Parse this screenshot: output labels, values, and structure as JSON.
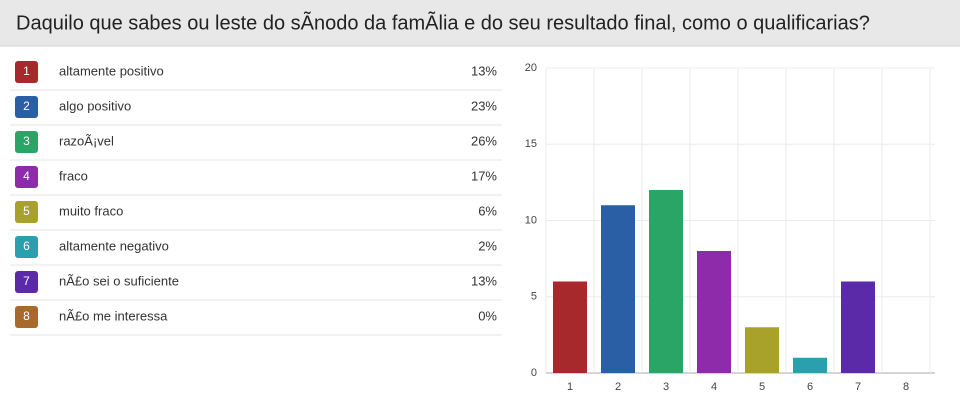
{
  "chart_data": {
    "type": "bar",
    "title": "Daquilo que sabes ou leste do sÃnodo da famÃlia e do seu resultado final, como o qualificarias?",
    "categories": [
      "1",
      "2",
      "3",
      "4",
      "5",
      "6",
      "7",
      "8"
    ],
    "values": [
      6,
      11,
      12,
      8,
      3,
      1,
      6,
      0
    ],
    "colors": [
      "#a8292b",
      "#2a5fa6",
      "#2aa566",
      "#8e2bab",
      "#a8a22a",
      "#2a9fae",
      "#5a2aa8",
      "#a86a2a"
    ],
    "ylim": [
      0,
      20
    ],
    "yticks": [
      0,
      5,
      10,
      15,
      20
    ],
    "grid": true,
    "table": {
      "rows": [
        [
          "altamente positivo",
          "13%"
        ],
        [
          "algo positivo",
          "23%"
        ],
        [
          "razoÃ¡vel",
          "26%"
        ],
        [
          "fraco",
          "17%"
        ],
        [
          "muito fraco",
          "6%"
        ],
        [
          "altamente negativo",
          "2%"
        ],
        [
          "nÃ£o sei o suficiente",
          "13%"
        ],
        [
          "nÃ£o me interessa",
          "0%"
        ]
      ]
    }
  }
}
